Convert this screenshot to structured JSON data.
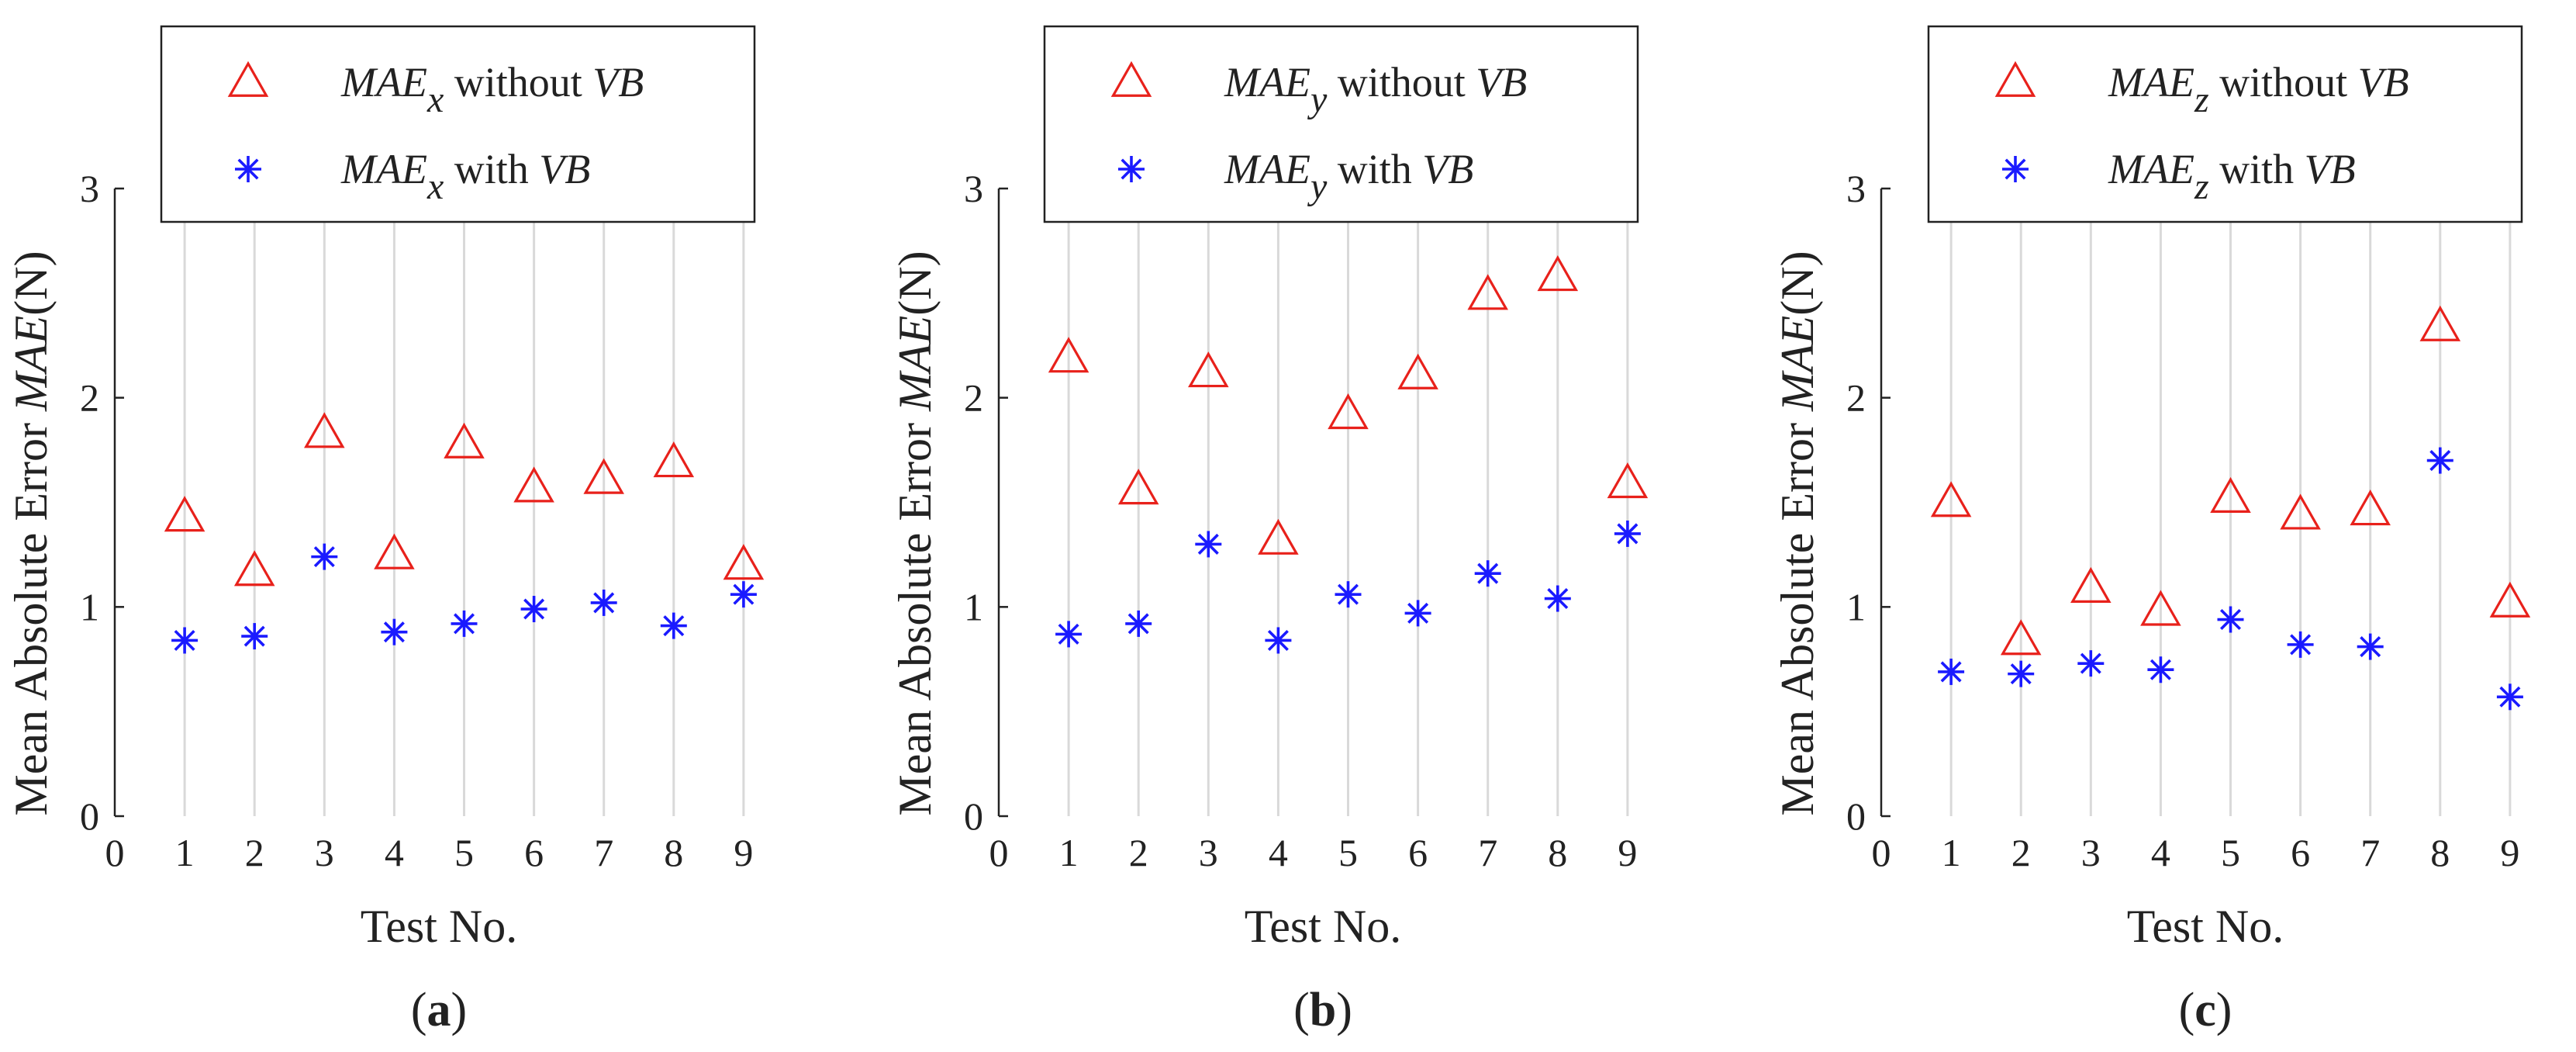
{
  "figure": {
    "shared": {
      "xlabel": "Test No.",
      "ylabel_prefix": "Mean Absolute Error ",
      "ylabel_symbol": "MAE",
      "ylabel_unit": "(N)",
      "legend_without": "without",
      "legend_with": "with",
      "legend_vb": "VB",
      "legend_symbol": "MAE",
      "panel_open": "(",
      "panel_close": ")"
    },
    "colors": {
      "without_vb": "#e8211b",
      "with_vb": "#1a1aff",
      "gridline": "#d9d9d9",
      "axis": "#222222"
    }
  },
  "chart_data": [
    {
      "type": "scatter",
      "panel": "a",
      "component": "x",
      "xlabel": "Test No.",
      "ylabel": "Mean Absolute Error MAE(N)",
      "xlim": [
        0,
        9.9
      ],
      "ylim": [
        0,
        3
      ],
      "xticks": [
        0,
        1,
        2,
        3,
        4,
        5,
        6,
        7,
        8,
        9
      ],
      "yticks": [
        0,
        1,
        2,
        3
      ],
      "grid": "vertical",
      "legend": "top",
      "series": [
        {
          "name": "MAE_x without VB",
          "marker": "triangle",
          "color": "#e8211b",
          "x": [
            1,
            2,
            3,
            4,
            5,
            6,
            7,
            8,
            9
          ],
          "values": [
            1.43,
            1.17,
            1.83,
            1.25,
            1.78,
            1.57,
            1.61,
            1.69,
            1.2
          ]
        },
        {
          "name": "MAE_x with VB",
          "marker": "asterisk",
          "color": "#1a1aff",
          "x": [
            1,
            2,
            3,
            4,
            5,
            6,
            7,
            8,
            9
          ],
          "values": [
            0.84,
            0.86,
            1.24,
            0.88,
            0.92,
            0.99,
            1.02,
            0.91,
            1.06
          ]
        }
      ]
    },
    {
      "type": "scatter",
      "panel": "b",
      "component": "y",
      "xlabel": "Test No.",
      "ylabel": "Mean Absolute Error MAE(N)",
      "xlim": [
        0,
        9.9
      ],
      "ylim": [
        0,
        3
      ],
      "xticks": [
        0,
        1,
        2,
        3,
        4,
        5,
        6,
        7,
        8,
        9
      ],
      "yticks": [
        0,
        1,
        2,
        3
      ],
      "grid": "vertical",
      "legend": "top",
      "series": [
        {
          "name": "MAE_y without VB",
          "marker": "triangle",
          "color": "#e8211b",
          "x": [
            1,
            2,
            3,
            4,
            5,
            6,
            7,
            8,
            9
          ],
          "values": [
            2.19,
            1.56,
            2.12,
            1.32,
            1.92,
            2.11,
            2.49,
            2.58,
            1.59
          ]
        },
        {
          "name": "MAE_y with VB",
          "marker": "asterisk",
          "color": "#1a1aff",
          "x": [
            1,
            2,
            3,
            4,
            5,
            6,
            7,
            8,
            9
          ],
          "values": [
            0.87,
            0.92,
            1.3,
            0.84,
            1.06,
            0.97,
            1.16,
            1.04,
            1.35
          ]
        }
      ]
    },
    {
      "type": "scatter",
      "panel": "c",
      "component": "z",
      "xlabel": "Test No.",
      "ylabel": "Mean Absolute Error MAE(N)",
      "xlim": [
        0,
        9.9
      ],
      "ylim": [
        0,
        3
      ],
      "xticks": [
        0,
        1,
        2,
        3,
        4,
        5,
        6,
        7,
        8,
        9
      ],
      "yticks": [
        0,
        1,
        2,
        3
      ],
      "grid": "vertical",
      "legend": "top",
      "series": [
        {
          "name": "MAE_z without VB",
          "marker": "triangle",
          "color": "#e8211b",
          "x": [
            1,
            2,
            3,
            4,
            5,
            6,
            7,
            8,
            9
          ],
          "values": [
            1.5,
            0.84,
            1.09,
            0.98,
            1.52,
            1.44,
            1.46,
            2.34,
            1.02
          ]
        },
        {
          "name": "MAE_z with VB",
          "marker": "asterisk",
          "color": "#1a1aff",
          "x": [
            1,
            2,
            3,
            4,
            5,
            6,
            7,
            8,
            9
          ],
          "values": [
            0.69,
            0.68,
            0.73,
            0.7,
            0.94,
            0.82,
            0.81,
            1.7,
            0.57
          ]
        }
      ]
    }
  ]
}
